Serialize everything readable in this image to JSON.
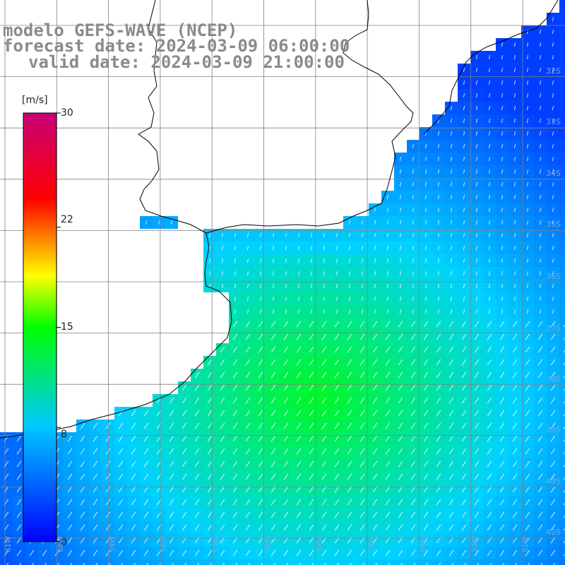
{
  "header": {
    "line1": "modelo GEFS-WAVE (NCEP)",
    "line2": "forecast date: 2024-03-09 06:00:00",
    "line3": "valid date: 2024-03-09 21:00:00"
  },
  "colorbar": {
    "units": "[m/s]",
    "ticks": [
      "30",
      "22",
      "15",
      "8",
      "0"
    ],
    "tick_values": [
      30,
      22,
      15,
      8,
      0
    ],
    "range": [
      0,
      30
    ],
    "colors": [
      "#0000ff",
      "#00c8ff",
      "#00ff00",
      "#ffff00",
      "#ff0000",
      "#c80078"
    ]
  },
  "axes": {
    "lat_labels": [
      "32S",
      "33S",
      "34S",
      "35S",
      "36S",
      "37S",
      "38S",
      "39S",
      "40S",
      "41S"
    ],
    "lon_labels": [
      "61W",
      "60W",
      "59W",
      "58W",
      "57W",
      "56W",
      "55W",
      "54W",
      "53W",
      "52W",
      "51W"
    ]
  },
  "map": {
    "land_color": "#ffffff",
    "coast_color": "#000000",
    "grid_color": "#808080",
    "arrow_color": "#ffffff"
  }
}
